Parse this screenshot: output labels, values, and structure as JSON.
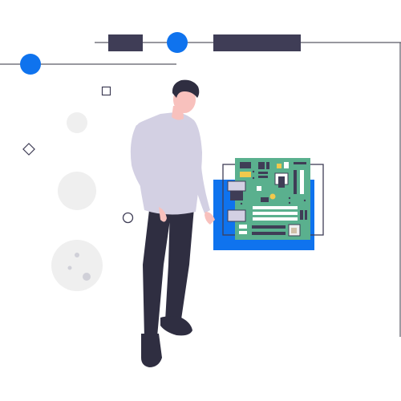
{
  "illustration": {
    "subject": "person-inspecting-motherboard",
    "colors": {
      "accent_blue": "#0f73ee",
      "dark_navy": "#3f3d56",
      "line_gray": "#5b5b66",
      "skin": "#f8c1bd",
      "hair": "#2f2e41",
      "shirt": "#d3d0e3",
      "pants": "#2f2e41",
      "board_green": "#5ab08e",
      "light_gray": "#efefef",
      "mid_gray": "#dcdcdc"
    },
    "icons": [
      "circuit-board-icon",
      "square-outline-icon",
      "diamond-outline-icon",
      "circle-outline-icon"
    ]
  }
}
